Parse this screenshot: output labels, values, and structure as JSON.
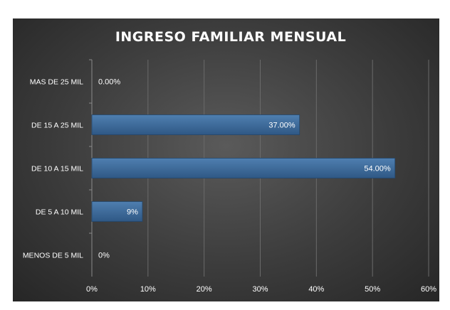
{
  "chart_data": {
    "type": "bar",
    "orientation": "horizontal",
    "title": "INGRESO FAMILIAR MENSUAL",
    "categories": [
      "MAS DE 25 MIL",
      "DE 15 A 25 MIL",
      "DE 10 A 15 MIL",
      "DE 5 A 10 MIL",
      "MENOS DE 5 MIL"
    ],
    "values": [
      0,
      37,
      54,
      9,
      0
    ],
    "data_labels": [
      "0.00%",
      "37.00%",
      "54.00%",
      "9%",
      "0%"
    ],
    "x_ticks": [
      "0%",
      "10%",
      "20%",
      "30%",
      "40%",
      "50%",
      "60%"
    ],
    "xlim": [
      0,
      60
    ],
    "grid": true,
    "colors": {
      "bar": "#3e6b9a",
      "background": "#3a3a3a",
      "grid": "#6a6a6a"
    }
  }
}
